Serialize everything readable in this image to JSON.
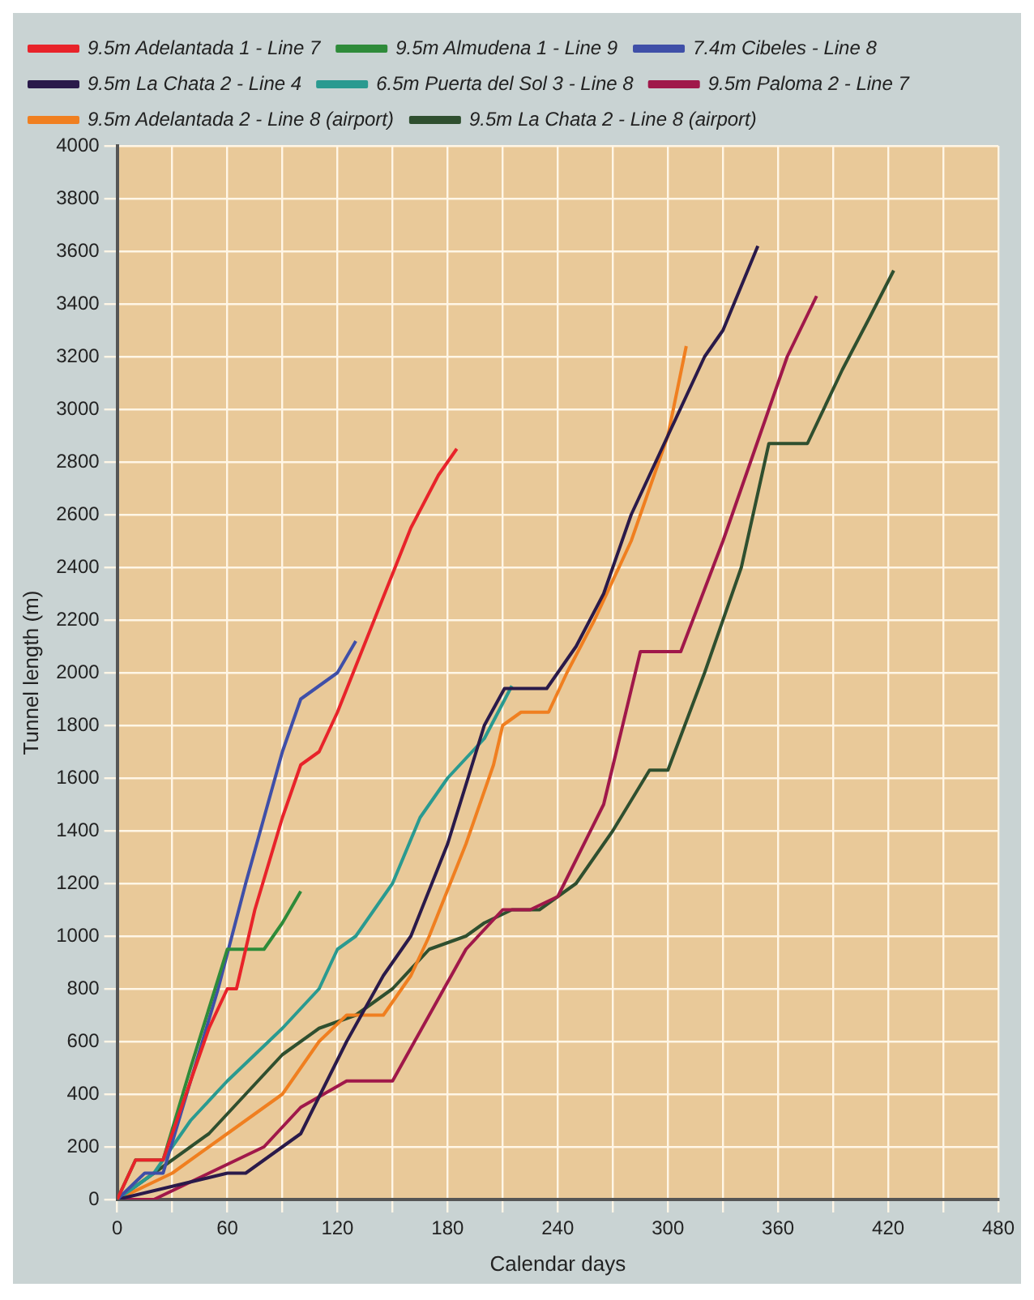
{
  "chart_data": {
    "type": "line",
    "xlabel": "Calendar days",
    "ylabel": "Tunnel length (m)",
    "xlim": [
      0,
      480
    ],
    "xticks": [
      0,
      {
        "value": 30,
        "label": null
      },
      60,
      {
        "value": 90,
        "label": null
      },
      120,
      {
        "value": 150,
        "label": null
      },
      180,
      {
        "value": 210,
        "label": null
      },
      240,
      {
        "value": 270,
        "label": null
      },
      300,
      {
        "value": 330,
        "label": null
      },
      360,
      {
        "value": 390,
        "label": null
      },
      420,
      {
        "value": 450,
        "label": null
      },
      480
    ],
    "ylim": [
      0,
      4000
    ],
    "yticks": [
      0,
      200,
      400,
      600,
      800,
      1000,
      1200,
      1400,
      1600,
      1800,
      2000,
      2200,
      2400,
      2600,
      2800,
      3000,
      3200,
      3400,
      3600,
      3800,
      4000
    ],
    "grid": true,
    "legend": "top left",
    "marker": "none",
    "line_style": "solid",
    "series": [
      {
        "name": "9.5m Adelantada 1 - Line 7",
        "color": "#e8232a",
        "x": [
          0,
          10,
          25,
          40,
          50,
          60,
          65,
          75,
          90,
          100,
          110,
          120,
          140,
          160,
          175,
          185
        ],
        "values": [
          0,
          150,
          150,
          450,
          650,
          800,
          800,
          1100,
          1450,
          1650,
          1700,
          1850,
          2200,
          2550,
          2750,
          2850
        ]
      },
      {
        "name": "9.5m Almudena 1 - Line 9",
        "color": "#2e8b3a",
        "x": [
          0,
          10,
          25,
          40,
          60,
          80,
          90,
          100
        ],
        "values": [
          0,
          150,
          150,
          500,
          950,
          950,
          1050,
          1170
        ]
      },
      {
        "name": "7.4m Cibeles - Line 8",
        "color": "#3f4fa8",
        "x": [
          0,
          15,
          25,
          40,
          55,
          70,
          80,
          90,
          100,
          110,
          120,
          130
        ],
        "values": [
          0,
          100,
          100,
          450,
          800,
          1200,
          1450,
          1700,
          1900,
          1950,
          2000,
          2120
        ]
      },
      {
        "name": "9.5m La Chata 2 - Line 4",
        "color": "#2a1a4a",
        "x": [
          0,
          30,
          60,
          70,
          80,
          100,
          125,
          145,
          160,
          180,
          200,
          211,
          234,
          250,
          265,
          280,
          300,
          320,
          330,
          349
        ],
        "values": [
          0,
          50,
          100,
          100,
          150,
          250,
          600,
          850,
          1000,
          1350,
          1800,
          1940,
          1940,
          2100,
          2300,
          2600,
          2900,
          3200,
          3300,
          3620
        ]
      },
      {
        "name": "6.5m Puerta del Sol 3 - Line 8",
        "color": "#2a9a90",
        "x": [
          0,
          20,
          40,
          60,
          75,
          90,
          110,
          120,
          130,
          150,
          165,
          180,
          200,
          215
        ],
        "values": [
          0,
          100,
          300,
          450,
          550,
          650,
          800,
          950,
          1000,
          1200,
          1450,
          1600,
          1750,
          1950
        ]
      },
      {
        "name": "9.5m Paloma 2 - Line 7",
        "color": "#a0184a",
        "x": [
          0,
          20,
          50,
          80,
          100,
          125,
          150,
          170,
          190,
          210,
          225,
          240,
          265,
          285,
          307,
          330,
          350,
          365,
          381
        ],
        "values": [
          0,
          0,
          100,
          200,
          350,
          450,
          450,
          700,
          950,
          1100,
          1100,
          1150,
          1500,
          2080,
          2080,
          2500,
          2900,
          3200,
          3430
        ]
      },
      {
        "name": "9.5m Adelantada 2 - Line 8 (airport)",
        "color": "#f07f20",
        "x": [
          0,
          30,
          60,
          90,
          110,
          125,
          145,
          160,
          170,
          190,
          205,
          210,
          220,
          235,
          245,
          260,
          280,
          300,
          310
        ],
        "values": [
          0,
          100,
          250,
          400,
          600,
          700,
          700,
          850,
          1000,
          1350,
          1650,
          1800,
          1850,
          1850,
          2000,
          2200,
          2500,
          2900,
          3240
        ]
      },
      {
        "name": "9.5m La Chata 2 - Line 8 (airport)",
        "color": "#2f4f2f",
        "x": [
          0,
          20,
          50,
          70,
          90,
          110,
          130,
          150,
          170,
          190,
          200,
          215,
          230,
          250,
          270,
          290,
          300,
          320,
          340,
          355,
          376,
          395,
          410,
          423
        ],
        "values": [
          0,
          100,
          250,
          400,
          550,
          650,
          700,
          800,
          950,
          1000,
          1050,
          1100,
          1100,
          1200,
          1400,
          1630,
          1630,
          2000,
          2400,
          2870,
          2870,
          3150,
          3350,
          3527
        ]
      }
    ]
  }
}
